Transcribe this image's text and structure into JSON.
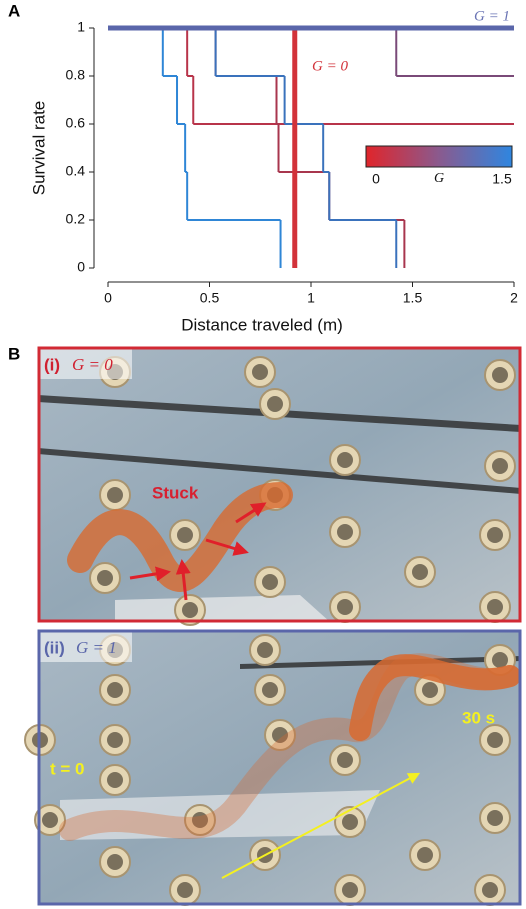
{
  "chart_data": {
    "type": "step",
    "panel_label": "A",
    "xlabel": "Distance traveled (m)",
    "ylabel": "Survival rate",
    "xlim": [
      0,
      2
    ],
    "ylim": [
      0,
      1
    ],
    "xticks": [
      0,
      0.5,
      1,
      1.5,
      2
    ],
    "yticks": [
      0,
      0.2,
      0.4,
      0.6,
      0.8,
      1
    ],
    "series": [
      {
        "color": "#2f86d6",
        "width": 2,
        "x": [
          0,
          0.27,
          0.34,
          0.38,
          0.39,
          0.85
        ],
        "values": [
          1,
          0.8,
          0.6,
          0.4,
          0.2,
          0
        ]
      },
      {
        "color": "#b8344a",
        "width": 2,
        "x": [
          0,
          0.39,
          0.42,
          2
        ],
        "values": [
          1,
          0.8,
          0.6,
          0.6
        ]
      },
      {
        "color": "#a8364e",
        "width": 2,
        "x": [
          0,
          0.53,
          0.83,
          0.84,
          1.09,
          1.46
        ],
        "values": [
          1,
          0.8,
          0.6,
          0.4,
          0.2,
          0
        ]
      },
      {
        "color": "#3a72bc",
        "width": 2,
        "x": [
          0,
          0.53,
          0.87,
          1.06,
          1.09,
          1.42
        ],
        "values": [
          1,
          0.8,
          0.6,
          0.4,
          0.2,
          0
        ]
      },
      {
        "color": "#d2323a",
        "width": 5,
        "x": [
          0,
          0.92
        ],
        "values": [
          1,
          0
        ]
      },
      {
        "color": "#7a4a78",
        "width": 2,
        "x": [
          0,
          1.42,
          2
        ],
        "values": [
          1,
          0.8,
          0.8
        ]
      },
      {
        "color": "#5a66aa",
        "width": 5,
        "x": [
          0,
          2
        ],
        "values": [
          1,
          1
        ]
      }
    ],
    "annotations": [
      {
        "text": "G = 1",
        "color": "#6a74b4"
      },
      {
        "text": "G = 0",
        "color": "#d2323a"
      }
    ],
    "colorbar": {
      "label": "G",
      "lim": [
        0,
        1.5
      ],
      "ticks": [
        0,
        1.5
      ],
      "colors": [
        "#e0252b",
        "#8a5a8e",
        "#2f86e0"
      ]
    }
  },
  "figure_b": {
    "panel_label": "B",
    "photos": [
      {
        "tag": "(i)",
        "title": "G = 0",
        "annotations": [
          "Stuck"
        ]
      },
      {
        "tag": "(ii)",
        "title": "G = 1",
        "annotations": [
          "t = 0",
          "30 s"
        ]
      }
    ]
  }
}
